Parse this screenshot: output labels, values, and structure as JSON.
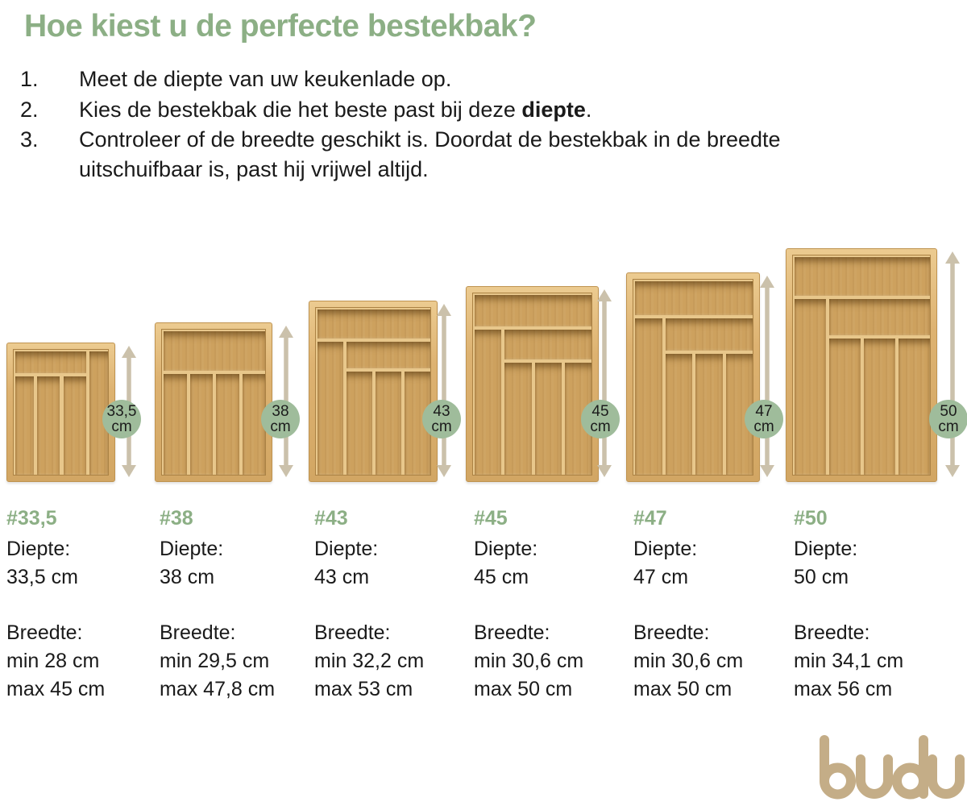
{
  "title": "Hoe kiest u de perfecte bestekbak?",
  "steps": [
    {
      "num": "1.",
      "parts": [
        {
          "t": "Meet de diepte van uw keukenlade op."
        }
      ]
    },
    {
      "num": "2.",
      "parts": [
        {
          "t": "Kies de bestekbak die het beste past bij deze "
        },
        {
          "t": "diepte",
          "b": true
        },
        {
          "t": "."
        }
      ]
    },
    {
      "num": "3.",
      "parts": [
        {
          "t": "Controleer of de breedte geschikt is. Doordat de bestekbak in de breedte uitschuifbaar is, past hij vrijwel altijd."
        }
      ]
    }
  ],
  "products": [
    {
      "id": "#33,5",
      "badge": {
        "value": "33,5",
        "unit": "cm"
      },
      "specs": {
        "depth_label": "Diepte:",
        "depth": "33,5 cm",
        "width_label": "Breedte:",
        "width_min": "min 28 cm",
        "width_max": "max 45 cm"
      }
    },
    {
      "id": "#38",
      "badge": {
        "value": "38",
        "unit": "cm"
      },
      "specs": {
        "depth_label": "Diepte:",
        "depth": "38 cm",
        "width_label": "Breedte:",
        "width_min": "min 29,5 cm",
        "width_max": "max 47,8 cm"
      }
    },
    {
      "id": "#43",
      "badge": {
        "value": "43",
        "unit": "cm"
      },
      "specs": {
        "depth_label": "Diepte:",
        "depth": "43 cm",
        "width_label": "Breedte:",
        "width_min": "min 32,2 cm",
        "width_max": "max 53 cm"
      }
    },
    {
      "id": "#45",
      "badge": {
        "value": "45",
        "unit": "cm"
      },
      "specs": {
        "depth_label": "Diepte:",
        "depth": "45 cm",
        "width_label": "Breedte:",
        "width_min": "min 30,6 cm",
        "width_max": "max 50 cm"
      }
    },
    {
      "id": "#47",
      "badge": {
        "value": "47",
        "unit": "cm"
      },
      "specs": {
        "depth_label": "Diepte:",
        "depth": "47 cm",
        "width_label": "Breedte:",
        "width_min": "min 30,6 cm",
        "width_max": "max 50 cm"
      }
    },
    {
      "id": "#50",
      "badge": {
        "value": "50",
        "unit": "cm"
      },
      "specs": {
        "depth_label": "Diepte:",
        "depth": "50 cm",
        "width_label": "Breedte:",
        "width_min": "min 34,1 cm",
        "width_max": "max 56 cm"
      }
    }
  ],
  "logo_text": "budu",
  "colors": {
    "title_green": "#8caf85",
    "badge_green": "#9fbc9b",
    "arrow_tan": "#cbc1ab",
    "logo_tan": "#c4ad87",
    "wood_wall": "#e8c78b",
    "wood_floor": "#cda15e",
    "text": "#1a1a1a"
  }
}
